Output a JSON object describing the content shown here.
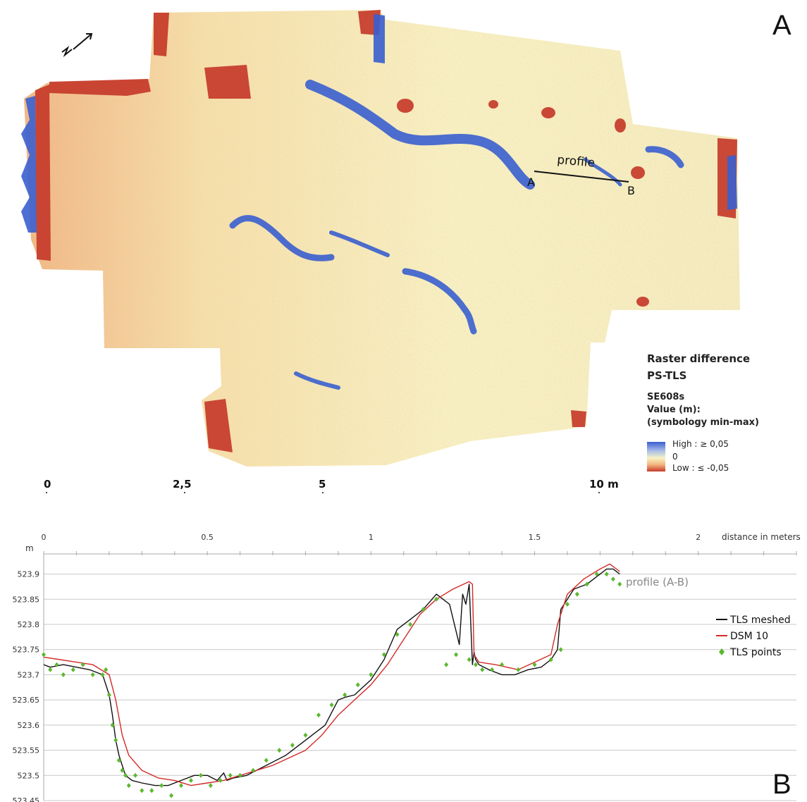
{
  "panel_a": {
    "letter": "A",
    "profile_label": "profile",
    "profile_start": "A",
    "profile_end": "B"
  },
  "legend": {
    "title_1": "Raster difference",
    "title_2": "PS-TLS",
    "layer": "SE608s",
    "value_label": "Value (m):",
    "symbology": "(symbology min-max)",
    "high": "High : ≥ 0,05",
    "zero": "0",
    "low": "Low : ≤ -0,05",
    "colors": {
      "high": "#3a5fcf",
      "mid": "#f7f3c2",
      "low": "#c63a2a"
    }
  },
  "scale_bar": {
    "labels": [
      "0",
      "2,5",
      "5",
      "10 m"
    ]
  },
  "panel_b": {
    "letter": "B"
  },
  "chart_data": {
    "type": "line",
    "x_label": "distance in meters",
    "y_unit": "m",
    "annotation": "profile (A-B)",
    "xlim": [
      0,
      2.3
    ],
    "ylim": [
      523.45,
      523.94
    ],
    "x_ticks": [
      "0",
      "0.5",
      "1",
      "1.5",
      "2"
    ],
    "x_tick_values": [
      0,
      0.5,
      1,
      1.5,
      2
    ],
    "y_ticks": [
      "523.45",
      "523.5",
      "523.55",
      "523.6",
      "523.65",
      "523.7",
      "523.75",
      "523.8",
      "523.85",
      "523.9"
    ],
    "y_tick_values": [
      523.45,
      523.5,
      523.55,
      523.6,
      523.65,
      523.7,
      523.75,
      523.8,
      523.85,
      523.9
    ],
    "grid": true,
    "legend_position": "right",
    "series": [
      {
        "name": "TLS meshed",
        "color": "#111111",
        "x": [
          0,
          0.02,
          0.06,
          0.1,
          0.14,
          0.18,
          0.2,
          0.21,
          0.22,
          0.23,
          0.24,
          0.25,
          0.27,
          0.3,
          0.34,
          0.38,
          0.42,
          0.46,
          0.5,
          0.53,
          0.55,
          0.56,
          0.58,
          0.62,
          0.68,
          0.74,
          0.8,
          0.86,
          0.9,
          0.92,
          0.95,
          1.0,
          1.04,
          1.08,
          1.12,
          1.16,
          1.2,
          1.24,
          1.27,
          1.28,
          1.29,
          1.3,
          1.31,
          1.315,
          1.32,
          1.33,
          1.36,
          1.4,
          1.44,
          1.48,
          1.52,
          1.55,
          1.57,
          1.58,
          1.6,
          1.62,
          1.66,
          1.7,
          1.72,
          1.74,
          1.76
        ],
        "y": [
          523.72,
          523.715,
          523.72,
          523.715,
          523.71,
          523.7,
          523.66,
          523.62,
          523.57,
          523.54,
          523.52,
          523.5,
          523.49,
          523.485,
          523.48,
          523.48,
          523.49,
          523.5,
          523.5,
          523.49,
          523.505,
          523.49,
          523.495,
          523.5,
          523.52,
          523.54,
          523.57,
          523.6,
          523.65,
          523.655,
          523.66,
          523.69,
          523.73,
          523.79,
          523.81,
          523.83,
          523.86,
          523.84,
          523.76,
          523.86,
          523.84,
          523.88,
          523.72,
          523.745,
          523.73,
          523.72,
          523.71,
          523.7,
          523.7,
          523.71,
          523.715,
          523.73,
          523.75,
          523.83,
          523.85,
          523.87,
          523.88,
          523.9,
          523.91,
          523.91,
          523.9
        ]
      },
      {
        "name": "DSM 10",
        "color": "#d22a26",
        "x": [
          0,
          0.05,
          0.1,
          0.15,
          0.2,
          0.22,
          0.24,
          0.26,
          0.3,
          0.35,
          0.4,
          0.45,
          0.5,
          0.55,
          0.6,
          0.7,
          0.8,
          0.85,
          0.9,
          0.95,
          1.0,
          1.05,
          1.1,
          1.15,
          1.2,
          1.25,
          1.3,
          1.31,
          1.315,
          1.33,
          1.38,
          1.45,
          1.5,
          1.55,
          1.57,
          1.6,
          1.65,
          1.7,
          1.73,
          1.76
        ],
        "y": [
          523.735,
          523.73,
          523.725,
          523.72,
          523.7,
          523.65,
          523.58,
          523.54,
          523.51,
          523.495,
          523.49,
          523.48,
          523.485,
          523.49,
          523.5,
          523.52,
          523.55,
          523.58,
          523.62,
          523.65,
          523.68,
          523.72,
          523.77,
          523.82,
          523.85,
          523.87,
          523.885,
          523.88,
          523.74,
          523.725,
          523.72,
          523.71,
          523.725,
          523.74,
          523.8,
          523.86,
          523.89,
          523.91,
          523.92,
          523.905
        ]
      },
      {
        "name": "TLS points",
        "color": "#5bb82e",
        "x": [
          0.0,
          0.02,
          0.04,
          0.06,
          0.09,
          0.12,
          0.15,
          0.18,
          0.19,
          0.2,
          0.21,
          0.22,
          0.23,
          0.24,
          0.25,
          0.26,
          0.28,
          0.3,
          0.33,
          0.36,
          0.39,
          0.42,
          0.45,
          0.48,
          0.51,
          0.54,
          0.57,
          0.6,
          0.64,
          0.68,
          0.72,
          0.76,
          0.8,
          0.84,
          0.88,
          0.92,
          0.96,
          1.0,
          1.04,
          1.08,
          1.12,
          1.16,
          1.2,
          1.23,
          1.26,
          1.3,
          1.32,
          1.34,
          1.37,
          1.4,
          1.45,
          1.5,
          1.55,
          1.58,
          1.6,
          1.63,
          1.66,
          1.69,
          1.72,
          1.74,
          1.76
        ],
        "y": [
          523.74,
          523.71,
          523.72,
          523.7,
          523.71,
          523.72,
          523.7,
          523.7,
          523.71,
          523.66,
          523.6,
          523.57,
          523.53,
          523.51,
          523.5,
          523.48,
          523.5,
          523.47,
          523.47,
          523.48,
          523.46,
          523.48,
          523.49,
          523.5,
          523.48,
          523.49,
          523.5,
          523.5,
          523.51,
          523.53,
          523.55,
          523.56,
          523.58,
          523.62,
          523.64,
          523.66,
          523.68,
          523.7,
          523.74,
          523.78,
          523.8,
          523.83,
          523.85,
          523.72,
          523.74,
          523.73,
          523.72,
          523.71,
          523.71,
          523.72,
          523.71,
          523.72,
          523.73,
          523.75,
          523.84,
          523.86,
          523.88,
          523.9,
          523.9,
          523.89,
          523.88
        ]
      }
    ]
  }
}
